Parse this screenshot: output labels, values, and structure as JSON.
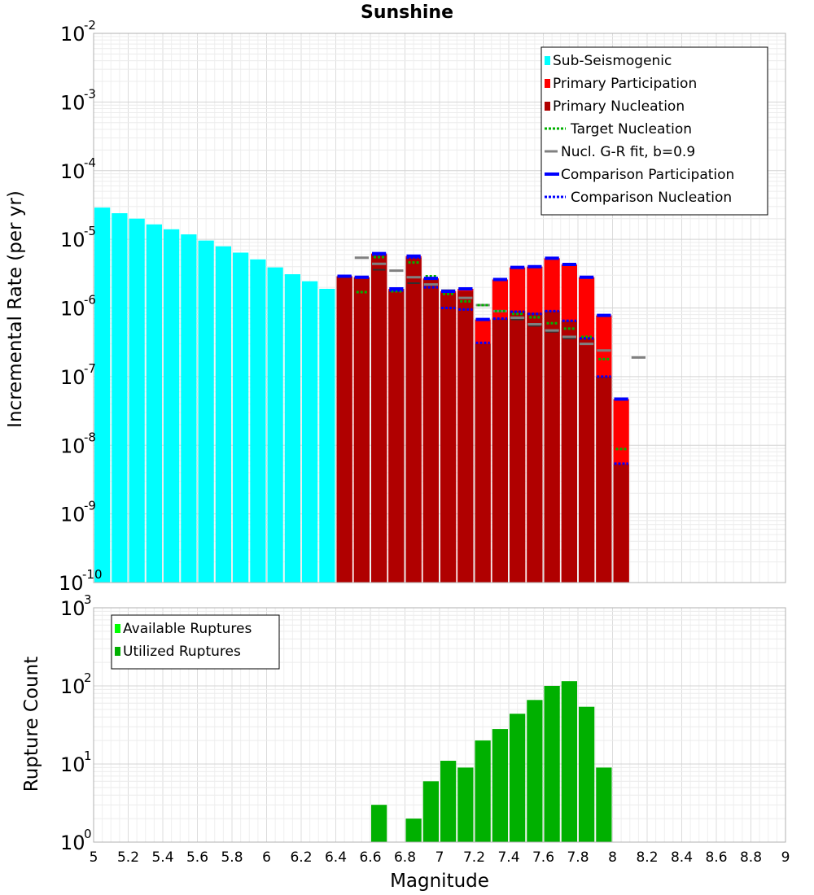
{
  "chart_data": [
    {
      "type": "bar",
      "title": "Sunshine",
      "xlabel": "Magnitude",
      "ylabel": "Incremental Rate (per yr)",
      "yscale": "log",
      "ylim": [
        1e-10,
        0.01
      ],
      "xlim": [
        5,
        9
      ],
      "xticks": [
        "5",
        "5.2",
        "5.4",
        "5.6",
        "5.8",
        "6",
        "6.2",
        "6.4",
        "6.6",
        "6.8",
        "7",
        "7.2",
        "7.4",
        "7.6",
        "7.8",
        "8",
        "8.2",
        "8.4",
        "8.6",
        "8.8",
        "9"
      ],
      "yticks": [
        {
          "base": "10",
          "exp": "-10"
        },
        {
          "base": "10",
          "exp": "-9"
        },
        {
          "base": "10",
          "exp": "-8"
        },
        {
          "base": "10",
          "exp": "-7"
        },
        {
          "base": "10",
          "exp": "-6"
        },
        {
          "base": "10",
          "exp": "-5"
        },
        {
          "base": "10",
          "exp": "-4"
        },
        {
          "base": "10",
          "exp": "-3"
        },
        {
          "base": "10",
          "exp": "-2"
        }
      ],
      "bin_width": 0.1,
      "legend": [
        {
          "label": "Sub-Seismogenic",
          "color": "#00ffff",
          "style": "box"
        },
        {
          "label": "Primary Participation",
          "color": "#ff0000",
          "style": "box"
        },
        {
          "label": "Primary Nucleation",
          "color": "#b00000",
          "style": "box"
        },
        {
          "label": "Target Nucleation",
          "color": "#00b000",
          "style": "dotted"
        },
        {
          "label": "Nucl. G-R fit, b=0.9",
          "color": "#808080",
          "style": "solid"
        },
        {
          "label": "Comparison Participation",
          "color": "#0000ff",
          "style": "thick"
        },
        {
          "label": "Comparison Nucleation",
          "color": "#0000ff",
          "style": "dotted"
        }
      ],
      "colors": {
        "sub_seismogenic": "#00ffff",
        "primary_participation": "#ff0000",
        "primary_nucleation": "#b00000",
        "target_nucleation": "#00b000",
        "gr_fit": "#808080",
        "comparison_participation": "#0000ff",
        "comparison_nucleation": "#0000ff",
        "nucleation_tick": "#303030"
      },
      "sub_seismogenic": {
        "x": [
          5.05,
          5.15,
          5.25,
          5.35,
          5.45,
          5.55,
          5.65,
          5.75,
          5.85,
          5.95,
          6.05,
          6.15,
          6.25,
          6.35
        ],
        "values": [
          2.9e-05,
          2.4e-05,
          2e-05,
          1.65e-05,
          1.4e-05,
          1.18e-05,
          9.6e-06,
          7.9e-06,
          6.4e-06,
          5.1e-06,
          3.9e-06,
          3.1e-06,
          2.45e-06,
          1.9e-06
        ]
      },
      "x": [
        6.45,
        6.55,
        6.65,
        6.75,
        6.85,
        6.95,
        7.05,
        7.15,
        7.25,
        7.35,
        7.45,
        7.55,
        7.65,
        7.75,
        7.85,
        7.95,
        8.05
      ],
      "primary_participation": [
        2.9e-06,
        2.8e-06,
        6.2e-06,
        1.9e-06,
        5.7e-06,
        2.7e-06,
        1.75e-06,
        1.9e-06,
        6.8e-07,
        2.6e-06,
        3.9e-06,
        4e-06,
        5.3e-06,
        4.3e-06,
        2.8e-06,
        7.8e-07,
        4.7e-08
      ],
      "primary_nucleation": [
        2.9e-06,
        2.8e-06,
        6e-06,
        1.8e-06,
        5.4e-06,
        2.6e-06,
        1.65e-06,
        1.75e-06,
        3e-07,
        7e-07,
        9e-07,
        8.5e-07,
        9e-07,
        6.5e-07,
        3.6e-07,
        1e-07,
        5.3e-09
      ],
      "target_nucleation": [
        2.9e-06,
        1.7e-06,
        5.5e-06,
        1.75e-06,
        4.6e-06,
        2.9e-06,
        1.6e-06,
        1.25e-06,
        1.1e-06,
        9e-07,
        8.2e-07,
        7.3e-07,
        6e-07,
        5e-07,
        3.8e-07,
        1.8e-07,
        8.8e-09
      ],
      "nucleation_ticks": [
        null,
        null,
        3.6e-06,
        null,
        2.3e-06,
        null,
        null,
        null,
        null,
        null,
        6.8e-07,
        5.5e-07,
        4.5e-07,
        3.6e-07,
        3e-07,
        null,
        null
      ],
      "gr_fit": {
        "x": [
          6.55,
          6.65,
          6.75,
          6.85,
          6.95,
          7.05,
          7.15,
          7.25,
          7.35,
          7.45,
          7.55,
          7.65,
          7.75,
          7.85,
          7.95,
          8.15
        ],
        "values": [
          5.4e-06,
          4.4e-06,
          3.5e-06,
          2.8e-06,
          2.2e-06,
          1.8e-06,
          1.4e-06,
          1.1e-06,
          9e-07,
          7.2e-07,
          5.8e-07,
          4.7e-07,
          3.8e-07,
          3e-07,
          2.4e-07,
          1.9e-07
        ]
      },
      "comparison_participation": [
        2.9e-06,
        2.8e-06,
        6.2e-06,
        1.9e-06,
        5.7e-06,
        2.7e-06,
        1.75e-06,
        1.9e-06,
        6.8e-07,
        2.6e-06,
        3.9e-06,
        4e-06,
        5.3e-06,
        4.3e-06,
        2.8e-06,
        7.8e-07,
        4.7e-08
      ],
      "comparison_nucleation": [
        2.9e-06,
        2.8e-06,
        6e-06,
        1.8e-06,
        5.4e-06,
        2e-06,
        1e-06,
        9.5e-07,
        3.1e-07,
        7e-07,
        8.8e-07,
        8.2e-07,
        9e-07,
        6.5e-07,
        3.6e-07,
        1e-07,
        5.4e-09
      ]
    },
    {
      "type": "bar",
      "title": "",
      "xlabel": "Magnitude",
      "ylabel": "Rupture Count",
      "yscale": "log",
      "ylim": [
        1,
        1000
      ],
      "xlim": [
        5,
        9
      ],
      "yticks": [
        {
          "base": "10",
          "exp": "0"
        },
        {
          "base": "10",
          "exp": "1"
        },
        {
          "base": "10",
          "exp": "2"
        },
        {
          "base": "10",
          "exp": "3"
        }
      ],
      "legend": [
        {
          "label": "Available Ruptures",
          "color": "#00ff00",
          "style": "box"
        },
        {
          "label": "Utilized Ruptures",
          "color": "#00b000",
          "style": "box"
        }
      ],
      "x": [
        6.65,
        6.85,
        6.95,
        7.05,
        7.15,
        7.25,
        7.35,
        7.45,
        7.55,
        7.65,
        7.75,
        7.85,
        7.95
      ],
      "values": [
        3,
        2,
        6,
        11,
        9,
        20,
        28,
        44,
        66,
        100,
        115,
        54,
        9
      ]
    }
  ]
}
